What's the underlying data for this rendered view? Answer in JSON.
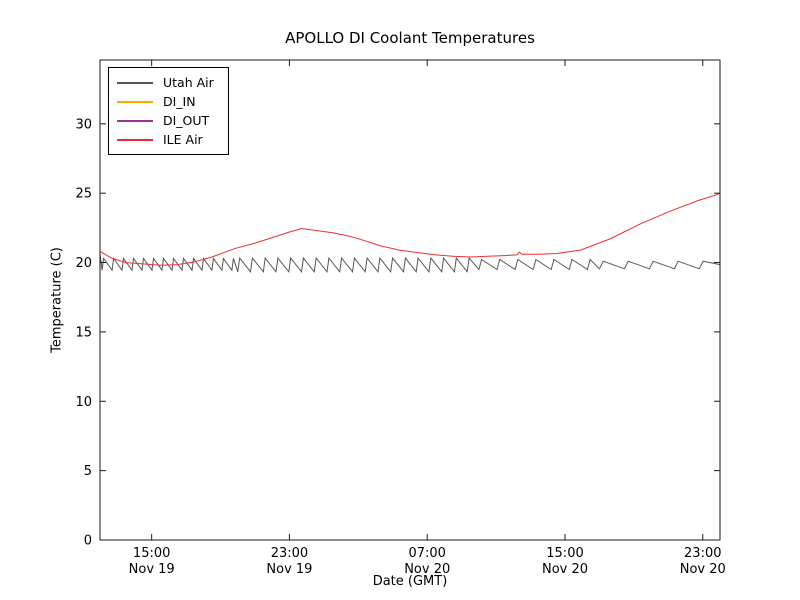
{
  "chart_data": {
    "type": "line",
    "title": "APOLLO DI Coolant Temperatures",
    "xlabel": "Date (GMT)",
    "ylabel": "Temperature (C)",
    "grid": false,
    "legend_position": "upper left",
    "x_unit": "hours since Nov 19 12:00 GMT",
    "xlim_hours": [
      0,
      36
    ],
    "ylim": [
      0,
      34.6
    ],
    "yticks": [
      0,
      5,
      10,
      15,
      20,
      25,
      30
    ],
    "xticks": [
      {
        "t": 3,
        "time": "15:00",
        "date": "Nov 19"
      },
      {
        "t": 11,
        "time": "23:00",
        "date": "Nov 19"
      },
      {
        "t": 19,
        "time": "07:00",
        "date": "Nov 20"
      },
      {
        "t": 27,
        "time": "15:00",
        "date": "Nov 20"
      },
      {
        "t": 35,
        "time": "23:00",
        "date": "Nov 20"
      }
    ],
    "series": [
      {
        "name": "Utah Air",
        "color": "#555555",
        "type": "sawtooth",
        "start_point": [
          0,
          20.65
        ],
        "end_point": [
          36,
          19.85
        ],
        "rise_fraction": 0.15,
        "sawtooth_segments": [
          {
            "t0": 0.12,
            "t1": 8,
            "period": 0.58,
            "peak": 20.3,
            "trough": 19.45
          },
          {
            "t0": 8,
            "t1": 22,
            "period": 0.74,
            "peak": 20.32,
            "trough": 19.33
          },
          {
            "t0": 22,
            "t1": 29,
            "period": 1.05,
            "peak": 20.22,
            "trough": 19.5
          },
          {
            "t0": 29,
            "t1": 36,
            "period": 1.45,
            "peak": 20.1,
            "trough": 19.55
          }
        ]
      },
      {
        "name": "DI_IN",
        "color": "#ffa500",
        "type": "line",
        "points": []
      },
      {
        "name": "DI_OUT",
        "color": "#993399",
        "type": "line",
        "points": []
      },
      {
        "name": "ILE Air",
        "color": "#ee2e2e",
        "type": "line",
        "points": [
          [
            0,
            20.8
          ],
          [
            0.7,
            20.3
          ],
          [
            1.5,
            20.0
          ],
          [
            2.5,
            19.9
          ],
          [
            3.5,
            19.8
          ],
          [
            4.5,
            19.85
          ],
          [
            5.5,
            20.05
          ],
          [
            6.5,
            20.4
          ],
          [
            7.8,
            21.0
          ],
          [
            9,
            21.4
          ],
          [
            10,
            21.8
          ],
          [
            11,
            22.2
          ],
          [
            11.7,
            22.45
          ],
          [
            12.3,
            22.35
          ],
          [
            13.5,
            22.15
          ],
          [
            14.5,
            21.9
          ],
          [
            15.3,
            21.6
          ],
          [
            16.3,
            21.2
          ],
          [
            17.4,
            20.9
          ],
          [
            18.5,
            20.7
          ],
          [
            19.5,
            20.55
          ],
          [
            20.5,
            20.45
          ],
          [
            21.5,
            20.4
          ],
          [
            22.5,
            20.45
          ],
          [
            23.5,
            20.5
          ],
          [
            24.2,
            20.55
          ],
          [
            24.35,
            20.75
          ],
          [
            24.5,
            20.6
          ],
          [
            25.5,
            20.6
          ],
          [
            26.5,
            20.65
          ],
          [
            27.9,
            20.9
          ],
          [
            29.6,
            21.7
          ],
          [
            31.4,
            22.8
          ],
          [
            33.1,
            23.7
          ],
          [
            34.8,
            24.5
          ],
          [
            35.7,
            24.85
          ],
          [
            36,
            25.0
          ]
        ]
      }
    ]
  }
}
